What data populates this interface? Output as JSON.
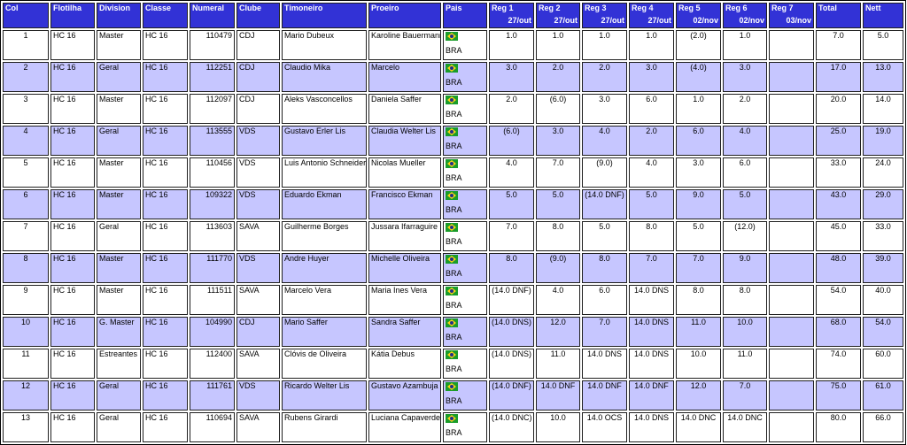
{
  "headers": [
    {
      "key": "col",
      "label": "Col",
      "date": ""
    },
    {
      "key": "flotilha",
      "label": "Flotilha",
      "date": ""
    },
    {
      "key": "division",
      "label": "Division",
      "date": ""
    },
    {
      "key": "classe",
      "label": "Classe",
      "date": ""
    },
    {
      "key": "numeral",
      "label": "Numeral",
      "date": ""
    },
    {
      "key": "clube",
      "label": "Clube",
      "date": ""
    },
    {
      "key": "timoneiro",
      "label": "Timoneiro",
      "date": ""
    },
    {
      "key": "proeiro",
      "label": "Proeiro",
      "date": ""
    },
    {
      "key": "pais",
      "label": "Pais",
      "date": ""
    },
    {
      "key": "r1",
      "label": "Reg 1",
      "date": "27/out"
    },
    {
      "key": "r2",
      "label": "Reg 2",
      "date": "27/out"
    },
    {
      "key": "r3",
      "label": "Reg 3",
      "date": "27/out"
    },
    {
      "key": "r4",
      "label": "Reg 4",
      "date": "27/out"
    },
    {
      "key": "r5",
      "label": "Reg 5",
      "date": "02/nov"
    },
    {
      "key": "r6",
      "label": "Reg 6",
      "date": "02/nov"
    },
    {
      "key": "r7",
      "label": "Reg 7",
      "date": "03/nov"
    },
    {
      "key": "total",
      "label": "Total",
      "date": ""
    },
    {
      "key": "nett",
      "label": "Nett",
      "date": ""
    }
  ],
  "rows": [
    {
      "col": "1",
      "flotilha": "HC 16",
      "division": "Master",
      "classe": "HC 16",
      "numeral": "110479",
      "clube": "CDJ",
      "timoneiro": "Mario Dubeux",
      "proeiro": "Karoline Bauermann",
      "pais": "BRA",
      "r1": "1.0",
      "r2": "1.0",
      "r3": "1.0",
      "r4": "1.0",
      "r5": "(2.0)",
      "r6": "1.0",
      "r7": "",
      "total": "7.0",
      "nett": "5.0"
    },
    {
      "col": "2",
      "flotilha": "HC 16",
      "division": "Geral",
      "classe": "HC 16",
      "numeral": "112251",
      "clube": "CDJ",
      "timoneiro": "Claudio Mika",
      "proeiro": "Marcelo",
      "pais": "BRA",
      "r1": "3.0",
      "r2": "2.0",
      "r3": "2.0",
      "r4": "3.0",
      "r5": "(4.0)",
      "r6": "3.0",
      "r7": "",
      "total": "17.0",
      "nett": "13.0"
    },
    {
      "col": "3",
      "flotilha": "HC 16",
      "division": "Master",
      "classe": "HC 16",
      "numeral": "112097",
      "clube": "CDJ",
      "timoneiro": "Aleks Vasconcellos",
      "proeiro": "Daniela Saffer",
      "pais": "BRA",
      "r1": "2.0",
      "r2": "(6.0)",
      "r3": "3.0",
      "r4": "6.0",
      "r5": "1.0",
      "r6": "2.0",
      "r7": "",
      "total": "20.0",
      "nett": "14.0"
    },
    {
      "col": "4",
      "flotilha": "HC 16",
      "division": "Geral",
      "classe": "HC 16",
      "numeral": "113555",
      "clube": "VDS",
      "timoneiro": "Gustavo Erler Lis",
      "proeiro": "Claudia Welter Lis",
      "pais": "BRA",
      "r1": "(6.0)",
      "r2": "3.0",
      "r3": "4.0",
      "r4": "2.0",
      "r5": "6.0",
      "r6": "4.0",
      "r7": "",
      "total": "25.0",
      "nett": "19.0"
    },
    {
      "col": "5",
      "flotilha": "HC 16",
      "division": "Master",
      "classe": "HC 16",
      "numeral": "110456",
      "clube": "VDS",
      "timoneiro": "Luis Antonio Schneider",
      "proeiro": "Nicolas Mueller",
      "pais": "BRA",
      "r1": "4.0",
      "r2": "7.0",
      "r3": "(9.0)",
      "r4": "4.0",
      "r5": "3.0",
      "r6": "6.0",
      "r7": "",
      "total": "33.0",
      "nett": "24.0"
    },
    {
      "col": "6",
      "flotilha": "HC 16",
      "division": "Master",
      "classe": "HC 16",
      "numeral": "109322",
      "clube": "VDS",
      "timoneiro": "Eduardo Ekman",
      "proeiro": "Francisco Ekman",
      "pais": "BRA",
      "r1": "5.0",
      "r2": "5.0",
      "r3": "(14.0 DNF)",
      "r4": "5.0",
      "r5": "9.0",
      "r6": "5.0",
      "r7": "",
      "total": "43.0",
      "nett": "29.0"
    },
    {
      "col": "7",
      "flotilha": "HC 16",
      "division": "Geral",
      "classe": "HC 16",
      "numeral": "113603",
      "clube": "SAVA",
      "timoneiro": "Guilherme Borges",
      "proeiro": "Jussara Ifarraguire",
      "pais": "BRA",
      "r1": "7.0",
      "r2": "8.0",
      "r3": "5.0",
      "r4": "8.0",
      "r5": "5.0",
      "r6": "(12.0)",
      "r7": "",
      "total": "45.0",
      "nett": "33.0"
    },
    {
      "col": "8",
      "flotilha": "HC 16",
      "division": "Master",
      "classe": "HC 16",
      "numeral": "111770",
      "clube": "VDS",
      "timoneiro": "Andre Huyer",
      "proeiro": "Michelle Oliveira",
      "pais": "BRA",
      "r1": "8.0",
      "r2": "(9.0)",
      "r3": "8.0",
      "r4": "7.0",
      "r5": "7.0",
      "r6": "9.0",
      "r7": "",
      "total": "48.0",
      "nett": "39.0"
    },
    {
      "col": "9",
      "flotilha": "HC 16",
      "division": "Master",
      "classe": "HC 16",
      "numeral": "111511",
      "clube": "SAVA",
      "timoneiro": "Marcelo Vera",
      "proeiro": "Maria Ines Vera",
      "pais": "BRA",
      "r1": "(14.0 DNF)",
      "r2": "4.0",
      "r3": "6.0",
      "r4": "14.0 DNS",
      "r5": "8.0",
      "r6": "8.0",
      "r7": "",
      "total": "54.0",
      "nett": "40.0"
    },
    {
      "col": "10",
      "flotilha": "HC 16",
      "division": "G. Master",
      "classe": "HC 16",
      "numeral": "104990",
      "clube": "CDJ",
      "timoneiro": "Mario Saffer",
      "proeiro": "Sandra Saffer",
      "pais": "BRA",
      "r1": "(14.0 DNS)",
      "r2": "12.0",
      "r3": "7.0",
      "r4": "14.0 DNS",
      "r5": "11.0",
      "r6": "10.0",
      "r7": "",
      "total": "68.0",
      "nett": "54.0"
    },
    {
      "col": "11",
      "flotilha": "HC 16",
      "division": "Estreantes",
      "classe": "HC 16",
      "numeral": "112400",
      "clube": "SAVA",
      "timoneiro": "Clóvis de Oliveira",
      "proeiro": "Kátia Debus",
      "pais": "BRA",
      "r1": "(14.0 DNS)",
      "r2": "11.0",
      "r3": "14.0 DNS",
      "r4": "14.0 DNS",
      "r5": "10.0",
      "r6": "11.0",
      "r7": "",
      "total": "74.0",
      "nett": "60.0"
    },
    {
      "col": "12",
      "flotilha": "HC 16",
      "division": "Geral",
      "classe": "HC 16",
      "numeral": "111761",
      "clube": "VDS",
      "timoneiro": "Ricardo Welter Lis",
      "proeiro": "Gustavo Azambuja",
      "pais": "BRA",
      "r1": "(14.0 DNF)",
      "r2": "14.0 DNF",
      "r3": "14.0 DNF",
      "r4": "14.0 DNF",
      "r5": "12.0",
      "r6": "7.0",
      "r7": "",
      "total": "75.0",
      "nett": "61.0"
    },
    {
      "col": "13",
      "flotilha": "HC 16",
      "division": "Geral",
      "classe": "HC 16",
      "numeral": "110694",
      "clube": "SAVA",
      "timoneiro": "Rubens Girardi",
      "proeiro": "Luciana Capaverde",
      "pais": "BRA",
      "r1": "(14.0 DNC)",
      "r2": "10.0",
      "r3": "14.0 OCS",
      "r4": "14.0 DNS",
      "r5": "14.0 DNC",
      "r6": "14.0 DNC",
      "r7": "",
      "total": "80.0",
      "nett": "66.0"
    }
  ]
}
